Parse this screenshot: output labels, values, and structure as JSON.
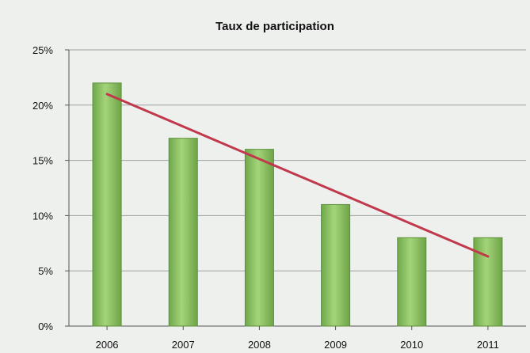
{
  "chart_data": {
    "type": "bar",
    "title": "Taux de participation",
    "categories": [
      "2006",
      "2007",
      "2008",
      "2009",
      "2010",
      "2011"
    ],
    "series": [
      {
        "values": [
          22,
          17,
          16,
          11,
          8,
          8
        ]
      }
    ],
    "trendline": {
      "start": 21,
      "end": 6.3
    },
    "ylim": [
      0,
      25
    ],
    "yticks": [
      0,
      5,
      10,
      15,
      20,
      25
    ],
    "ytick_labels": [
      "0%",
      "5%",
      "10%",
      "15%",
      "20%",
      "25%"
    ],
    "grid": true,
    "colors": {
      "bar": "#8cc561",
      "bar_edge": "#5e8f3a",
      "trendline": "#c0394c"
    }
  }
}
